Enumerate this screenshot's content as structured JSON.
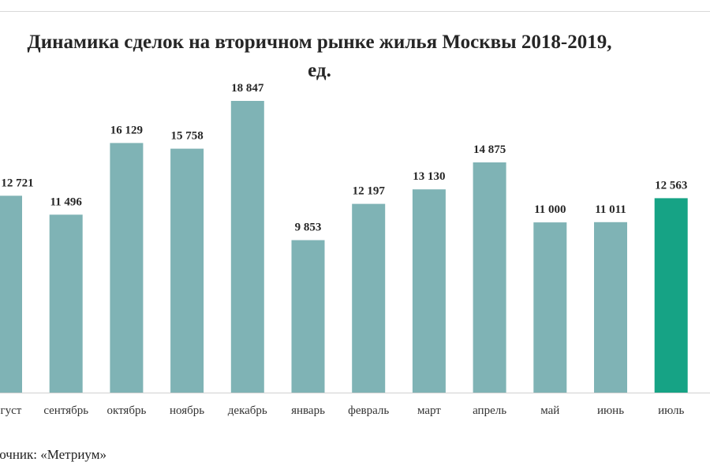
{
  "chart_data": {
    "type": "bar",
    "title_line1": "Динамика сделок на вторичном рынке жилья Москвы 2018-2019,",
    "title_line2": "ед.",
    "categories": [
      "август",
      "сентябрь",
      "октябрь",
      "ноябрь",
      "декабрь",
      "январь",
      "февраль",
      "март",
      "апрель",
      "май",
      "июнь",
      "июль"
    ],
    "values": [
      12721,
      11496,
      16129,
      15758,
      18847,
      9853,
      12197,
      13130,
      14875,
      11000,
      11011,
      12563
    ],
    "data_labels": [
      "12 721",
      "11 496",
      "16 129",
      "15 758",
      "18 847",
      "9 853",
      "12 197",
      "13 130",
      "14 875",
      "11 000",
      "11 011",
      "12 563"
    ],
    "ylim": [
      0,
      18847
    ],
    "grid": false,
    "legend": "none",
    "bar_color": "#7fb3b5",
    "highlight_color": "#16a385",
    "highlight_index": 11
  },
  "source": {
    "label": "точник:",
    "value": "«Метриум»"
  }
}
